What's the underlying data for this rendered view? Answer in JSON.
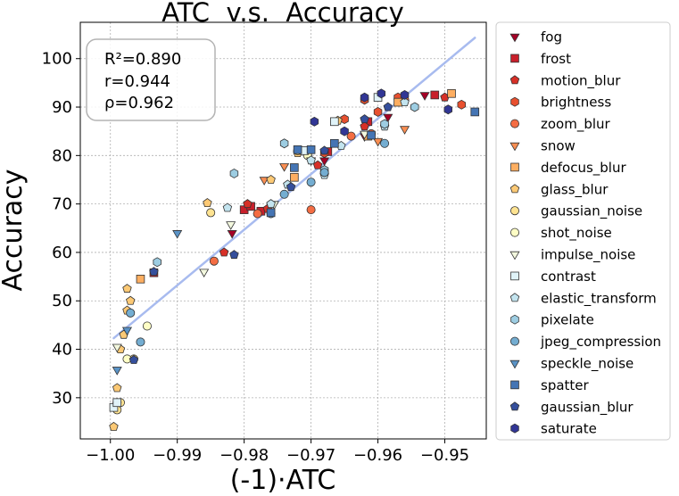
{
  "chart_data": {
    "type": "scatter",
    "title": "ATC  v.s.  Accuracy",
    "xlabel": "(-1)·ATC",
    "ylabel": "Accuracy",
    "xlim": [
      -1.0045,
      -0.9438
    ],
    "ylim": [
      21.5,
      107.5
    ],
    "xticks": [
      -1.0,
      -0.99,
      -0.98,
      -0.97,
      -0.96,
      -0.95
    ],
    "xtick_labels": [
      "−1.00",
      "−0.99",
      "−0.98",
      "−0.97",
      "−0.96",
      "−0.95"
    ],
    "yticks": [
      30,
      40,
      50,
      60,
      70,
      80,
      90,
      100
    ],
    "ytick_labels": [
      "30",
      "40",
      "50",
      "60",
      "70",
      "80",
      "90",
      "100"
    ],
    "grid": true,
    "legend_position": "right, outside plot",
    "stats": {
      "r2": "R²=0.890",
      "r": "r=0.944",
      "rho": "ρ=0.962"
    },
    "fit_line": {
      "x": [
        -0.9995,
        -0.9455
      ],
      "y": [
        42.3,
        104.3
      ],
      "color": "#a8bbef"
    },
    "series": [
      {
        "name": "fog",
        "marker": "triangle-down",
        "color": "#a50026",
        "points": [
          [
            -0.9818,
            64.0
          ],
          [
            -0.968,
            79.0
          ],
          [
            -0.962,
            84.0
          ],
          [
            -0.9585,
            88.0
          ],
          [
            -0.953,
            92.5
          ]
        ]
      },
      {
        "name": "frost",
        "marker": "square",
        "color": "#c8202b",
        "points": [
          [
            -0.9935,
            55.8
          ],
          [
            -0.98,
            68.8
          ],
          [
            -0.979,
            69.5
          ],
          [
            -0.9775,
            68.5
          ],
          [
            -0.9675,
            80.8
          ],
          [
            -0.9615,
            87.0
          ],
          [
            -0.9515,
            92.5
          ]
        ]
      },
      {
        "name": "motion_blur",
        "marker": "pentagon",
        "color": "#d73027",
        "points": [
          [
            -0.983,
            60.0
          ],
          [
            -0.9795,
            70.0
          ],
          [
            -0.9765,
            69.0
          ],
          [
            -0.969,
            78.0
          ],
          [
            -0.962,
            86.0
          ],
          [
            -0.95,
            92.0
          ]
        ]
      },
      {
        "name": "brightness",
        "marker": "hexagon",
        "color": "#e8502f",
        "points": [
          [
            -0.968,
            80.5
          ],
          [
            -0.965,
            87.5
          ],
          [
            -0.962,
            91.5
          ],
          [
            -0.96,
            89.0
          ],
          [
            -0.957,
            92.0
          ],
          [
            -0.9475,
            90.5
          ]
        ]
      },
      {
        "name": "zoom_blur",
        "marker": "circle",
        "color": "#f46d43",
        "points": [
          [
            -0.9845,
            58.2
          ],
          [
            -0.978,
            68.0
          ],
          [
            -0.97,
            68.8
          ],
          [
            -0.964,
            84.0
          ],
          [
            -0.961,
            84.5
          ],
          [
            -0.956,
            91.5
          ]
        ]
      },
      {
        "name": "snow",
        "marker": "triangle-down",
        "color": "#f98e52",
        "points": [
          [
            -0.977,
            75.0
          ],
          [
            -0.974,
            77.8
          ],
          [
            -0.96,
            83.0
          ],
          [
            -0.956,
            85.5
          ]
        ]
      },
      {
        "name": "defocus_blur",
        "marker": "square",
        "color": "#fdae61",
        "points": [
          [
            -0.9955,
            54.5
          ],
          [
            -0.9725,
            75.5
          ],
          [
            -0.9615,
            84.0
          ],
          [
            -0.957,
            91.0
          ],
          [
            -0.949,
            92.8
          ]
        ]
      },
      {
        "name": "glass_blur",
        "marker": "pentagon",
        "color": "#fcc975",
        "points": [
          [
            -0.9995,
            24.0
          ],
          [
            -0.999,
            32.0
          ],
          [
            -0.9985,
            40.0
          ],
          [
            -0.998,
            43.0
          ],
          [
            -0.9975,
            48.0
          ],
          [
            -0.997,
            50.0
          ],
          [
            -0.9975,
            52.5
          ],
          [
            -0.9855,
            70.2
          ],
          [
            -0.976,
            75.0
          ],
          [
            -0.972,
            80.5
          ],
          [
            -0.966,
            87.2
          ]
        ]
      },
      {
        "name": "gaussian_noise",
        "marker": "circle",
        "color": "#fee391",
        "points": [
          [
            -0.999,
            27.5
          ],
          [
            -0.9985,
            29.0
          ],
          [
            -0.9965,
            38.0
          ],
          [
            -0.985,
            68.2
          ],
          [
            -0.972,
            81.0
          ]
        ]
      },
      {
        "name": "shot_noise",
        "marker": "circle",
        "color": "#fefec5",
        "points": [
          [
            -0.999,
            29.0
          ],
          [
            -0.9975,
            38.0
          ],
          [
            -0.9945,
            44.8
          ],
          [
            -0.9705,
            80.0
          ]
        ]
      },
      {
        "name": "impulse_noise",
        "marker": "triangle-down",
        "color": "#f3f8de",
        "points": [
          [
            -0.999,
            40.5
          ],
          [
            -0.986,
            56.0
          ],
          [
            -0.982,
            65.8
          ],
          [
            -0.9755,
            70.0
          ],
          [
            -0.97,
            79.0
          ],
          [
            -0.962,
            84.5
          ]
        ]
      },
      {
        "name": "contrast",
        "marker": "square",
        "color": "#e0f3f8",
        "points": [
          [
            -0.9995,
            28.0
          ],
          [
            -0.999,
            29.0
          ],
          [
            -0.971,
            81.0
          ],
          [
            -0.9665,
            87.0
          ],
          [
            -0.96,
            92.0
          ]
        ]
      },
      {
        "name": "elastic_transform",
        "marker": "pentagon",
        "color": "#c3e4ef",
        "points": [
          [
            -0.9825,
            69.2
          ],
          [
            -0.976,
            70.0
          ],
          [
            -0.9735,
            74.0
          ],
          [
            -0.97,
            79.0
          ],
          [
            -0.968,
            76.0
          ],
          [
            -0.9655,
            82.0
          ],
          [
            -0.959,
            86.0
          ],
          [
            -0.956,
            91.0
          ]
        ]
      },
      {
        "name": "pixelate",
        "marker": "hexagon",
        "color": "#9dcde2",
        "points": [
          [
            -0.993,
            58.0
          ],
          [
            -0.9815,
            76.3
          ],
          [
            -0.974,
            82.5
          ],
          [
            -0.968,
            77.0
          ],
          [
            -0.959,
            86.5
          ],
          [
            -0.9545,
            90.0
          ]
        ]
      },
      {
        "name": "jpeg_compression",
        "marker": "circle",
        "color": "#74add1",
        "points": [
          [
            -0.997,
            47.5
          ],
          [
            -0.9955,
            41.5
          ],
          [
            -0.976,
            68.0
          ],
          [
            -0.974,
            72.0
          ],
          [
            -0.97,
            74.5
          ],
          [
            -0.968,
            76.5
          ],
          [
            -0.959,
            82.5
          ]
        ]
      },
      {
        "name": "speckle_noise",
        "marker": "triangle-down",
        "color": "#5a93c6",
        "points": [
          [
            -0.999,
            35.8
          ],
          [
            -0.9975,
            44.0
          ],
          [
            -0.99,
            64.0
          ]
        ]
      },
      {
        "name": "spatter",
        "marker": "square",
        "color": "#4575b4",
        "points": [
          [
            -0.976,
            68.2
          ],
          [
            -0.972,
            81.2
          ],
          [
            -0.97,
            81.2
          ],
          [
            -0.9725,
            77.5
          ],
          [
            -0.9665,
            82.5
          ],
          [
            -0.961,
            84.2
          ],
          [
            -0.9455,
            89.0
          ]
        ]
      },
      {
        "name": "gaussian_blur",
        "marker": "pentagon",
        "color": "#354f9c",
        "points": [
          [
            -0.9965,
            37.8
          ],
          [
            -0.9935,
            56.0
          ],
          [
            -0.9815,
            59.5
          ],
          [
            -0.973,
            73.5
          ],
          [
            -0.968,
            81.0
          ],
          [
            -0.962,
            87.5
          ],
          [
            -0.9585,
            90.0
          ]
        ]
      },
      {
        "name": "saturate",
        "marker": "hexagon",
        "color": "#313695",
        "points": [
          [
            -0.9695,
            87.0
          ],
          [
            -0.965,
            85.0
          ],
          [
            -0.962,
            92.0
          ],
          [
            -0.9595,
            92.8
          ],
          [
            -0.956,
            92.5
          ],
          [
            -0.9495,
            89.5
          ]
        ]
      }
    ]
  }
}
